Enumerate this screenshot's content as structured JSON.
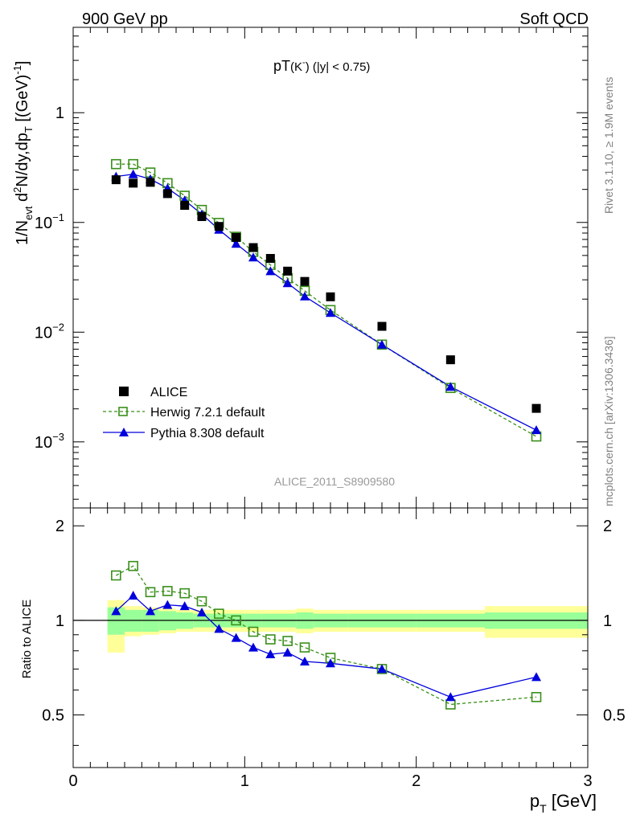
{
  "header": {
    "left": "900 GeV pp",
    "right": "Soft QCD"
  },
  "side_labels": {
    "rivet": "Rivet 3.1.10, ≥ 1.9M events",
    "mcplots": "mcplots.cern.ch [arXiv:1306.3436]"
  },
  "colors": {
    "alice": "#000000",
    "herwig": "#3a8f1a",
    "pythia": "#0000dd",
    "band_inner": "#99ff99",
    "band_outer": "#ffff99"
  },
  "chart_data": [
    {
      "type": "scatter",
      "title": "pT(K⁻) (|y| < 0.75)",
      "title_parts": {
        "main": "pT",
        "particle": "(K",
        "charge": "-",
        "cut": ") (|y| < 0.75)"
      },
      "ylabel": "1/N_evt d²N/dy,dp_T [(GeV)⁻¹]",
      "ylabel_parts": {
        "a": "1/N",
        "evt": "evt",
        "b": " d",
        "two": "2",
        "c": "N/dy,dp",
        "T": "T",
        "d": " [(GeV)",
        "minus1": "-1",
        "e": "]"
      },
      "y_scale": "log",
      "xlim": [
        0,
        3
      ],
      "ylim": [
        0.00025,
        6
      ],
      "y_tick_labels": [
        {
          "value": 1,
          "base": "1",
          "exp": ""
        },
        {
          "value": 0.1,
          "base": "10",
          "exp": "−1"
        },
        {
          "value": 0.01,
          "base": "10",
          "exp": "−2"
        },
        {
          "value": 0.001,
          "base": "10",
          "exp": "−3"
        }
      ],
      "watermark": "ALICE_2011_S8909580",
      "legend_position": "bottom-left",
      "series": [
        {
          "name": "ALICE",
          "marker": "filled-square",
          "x": [
            0.25,
            0.35,
            0.45,
            0.55,
            0.65,
            0.75,
            0.85,
            0.95,
            1.05,
            1.15,
            1.25,
            1.35,
            1.5,
            1.8,
            2.2,
            2.7
          ],
          "y": [
            0.245,
            0.228,
            0.232,
            0.183,
            0.143,
            0.113,
            0.092,
            0.073,
            0.059,
            0.047,
            0.036,
            0.029,
            0.021,
            0.0113,
            0.0056,
            0.00202
          ]
        },
        {
          "name": "Herwig 7.2.1 default",
          "marker": "open-square",
          "line": "dashed",
          "x": [
            0.25,
            0.35,
            0.45,
            0.55,
            0.65,
            0.75,
            0.85,
            0.95,
            1.05,
            1.15,
            1.25,
            1.35,
            1.5,
            1.8,
            2.2,
            2.7
          ],
          "y": [
            0.34,
            0.34,
            0.285,
            0.228,
            0.175,
            0.13,
            0.099,
            0.074,
            0.054,
            0.041,
            0.031,
            0.0238,
            0.0159,
            0.0077,
            0.0031,
            0.00112
          ]
        },
        {
          "name": "Pythia 8.308 default",
          "marker": "filled-triangle",
          "line": "solid",
          "x": [
            0.25,
            0.35,
            0.45,
            0.55,
            0.65,
            0.75,
            0.85,
            0.95,
            1.05,
            1.15,
            1.25,
            1.35,
            1.5,
            1.8,
            2.2,
            2.7
          ],
          "y": [
            0.262,
            0.275,
            0.248,
            0.205,
            0.159,
            0.119,
            0.086,
            0.064,
            0.048,
            0.036,
            0.028,
            0.0212,
            0.015,
            0.0077,
            0.00318,
            0.00128
          ]
        }
      ]
    },
    {
      "type": "line",
      "ylabel": "Ratio to ALICE",
      "xlabel": "p_T [GeV]",
      "xlabel_parts": {
        "p": "p",
        "T": "T",
        "rest": " [GeV]"
      },
      "xlim": [
        0,
        3
      ],
      "ylim": [
        0.34,
        2.28
      ],
      "x_ticks": [
        0,
        1,
        2,
        3
      ],
      "y_ticks": [
        0.5,
        1,
        2
      ],
      "reference_line": 1,
      "uncertainty_bands": [
        {
          "x0": 0.2,
          "x1": 0.3,
          "inner": [
            0.9,
            1.1
          ],
          "outer": [
            0.79,
            1.16
          ]
        },
        {
          "x0": 0.3,
          "x1": 0.4,
          "inner": [
            0.92,
            1.08
          ],
          "outer": [
            0.89,
            1.11
          ]
        },
        {
          "x0": 0.4,
          "x1": 0.5,
          "inner": [
            0.92,
            1.08
          ],
          "outer": [
            0.9,
            1.1
          ]
        },
        {
          "x0": 0.5,
          "x1": 0.6,
          "inner": [
            0.93,
            1.07
          ],
          "outer": [
            0.91,
            1.09
          ]
        },
        {
          "x0": 0.6,
          "x1": 0.7,
          "inner": [
            0.94,
            1.06
          ],
          "outer": [
            0.92,
            1.08
          ]
        },
        {
          "x0": 0.7,
          "x1": 0.8,
          "inner": [
            0.95,
            1.05
          ],
          "outer": [
            0.92,
            1.08
          ]
        },
        {
          "x0": 0.8,
          "x1": 0.9,
          "inner": [
            0.95,
            1.05
          ],
          "outer": [
            0.92,
            1.08
          ]
        },
        {
          "x0": 0.9,
          "x1": 1.0,
          "inner": [
            0.95,
            1.05
          ],
          "outer": [
            0.92,
            1.08
          ]
        },
        {
          "x0": 1.0,
          "x1": 1.1,
          "inner": [
            0.95,
            1.05
          ],
          "outer": [
            0.92,
            1.08
          ]
        },
        {
          "x0": 1.1,
          "x1": 1.2,
          "inner": [
            0.95,
            1.05
          ],
          "outer": [
            0.92,
            1.08
          ]
        },
        {
          "x0": 1.2,
          "x1": 1.3,
          "inner": [
            0.95,
            1.05
          ],
          "outer": [
            0.92,
            1.08
          ]
        },
        {
          "x0": 1.3,
          "x1": 1.4,
          "inner": [
            0.94,
            1.06
          ],
          "outer": [
            0.91,
            1.09
          ]
        },
        {
          "x0": 1.4,
          "x1": 1.6,
          "inner": [
            0.95,
            1.05
          ],
          "outer": [
            0.92,
            1.08
          ]
        },
        {
          "x0": 1.6,
          "x1": 2.0,
          "inner": [
            0.95,
            1.05
          ],
          "outer": [
            0.92,
            1.08
          ]
        },
        {
          "x0": 2.0,
          "x1": 2.4,
          "inner": [
            0.95,
            1.05
          ],
          "outer": [
            0.92,
            1.08
          ]
        },
        {
          "x0": 2.4,
          "x1": 3.0,
          "inner": [
            0.94,
            1.06
          ],
          "outer": [
            0.88,
            1.11
          ]
        }
      ],
      "series": [
        {
          "name": "Herwig 7.2.1 default",
          "x": [
            0.25,
            0.35,
            0.45,
            0.55,
            0.65,
            0.75,
            0.85,
            0.95,
            1.05,
            1.15,
            1.25,
            1.35,
            1.5,
            1.8,
            2.2,
            2.7
          ],
          "y": [
            1.39,
            1.49,
            1.23,
            1.24,
            1.22,
            1.15,
            1.05,
            1.0,
            0.92,
            0.87,
            0.86,
            0.82,
            0.76,
            0.7,
            0.54,
            0.57
          ]
        },
        {
          "name": "Pythia 8.308 default",
          "x": [
            0.25,
            0.35,
            0.45,
            0.55,
            0.65,
            0.75,
            0.85,
            0.95,
            1.05,
            1.15,
            1.25,
            1.35,
            1.5,
            1.8,
            2.2,
            2.7
          ],
          "y": [
            1.07,
            1.2,
            1.07,
            1.12,
            1.11,
            1.06,
            0.94,
            0.88,
            0.82,
            0.78,
            0.79,
            0.74,
            0.73,
            0.7,
            0.57,
            0.66
          ]
        }
      ]
    }
  ]
}
